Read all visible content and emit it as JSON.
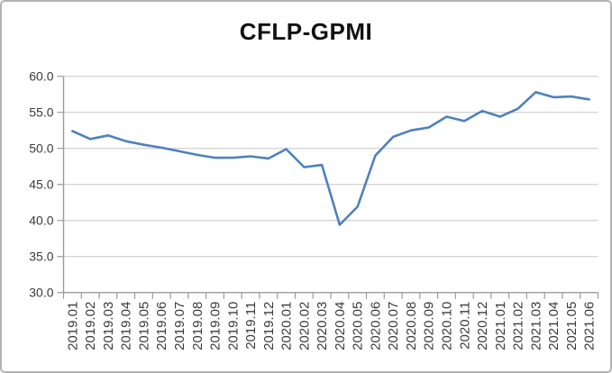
{
  "chart_data": {
    "type": "line",
    "title": "CFLP-GPMI",
    "categories": [
      "2019.01",
      "2019.02",
      "2019.03",
      "2019.04",
      "2019.05",
      "2019.06",
      "2019.07",
      "2019.08",
      "2019.09",
      "2019.10",
      "2019.11",
      "2019.12",
      "2020.01",
      "2020.02",
      "2020.03",
      "2020.04",
      "2020.05",
      "2020.06",
      "2020.07",
      "2020.08",
      "2020.09",
      "2020.10",
      "2020.11",
      "2020.12",
      "2021.01",
      "2021.02",
      "2021.03",
      "2021.04",
      "2021.05",
      "2021.06"
    ],
    "series": [
      {
        "name": "CFLP-GPMI",
        "color": "#4f81bd",
        "values": [
          52.4,
          51.3,
          51.8,
          51.0,
          50.5,
          50.1,
          49.6,
          49.1,
          48.7,
          48.7,
          48.9,
          48.6,
          49.9,
          47.4,
          47.7,
          39.4,
          41.9,
          49.0,
          51.6,
          52.5,
          52.9,
          54.4,
          53.8,
          55.2,
          54.4,
          55.5,
          57.8,
          57.1,
          57.2,
          56.8
        ]
      }
    ],
    "xlabel": "",
    "ylabel": "",
    "ylim": [
      30,
      60
    ],
    "y_ticks": [
      60,
      55,
      50,
      45,
      40,
      35,
      30
    ],
    "y_tick_labels": [
      "60.0",
      "55.0",
      "50.0",
      "45.0",
      "40.0",
      "35.0",
      "30.0"
    ],
    "legend": "none",
    "grid": "horizontal-major",
    "styles": {
      "line_width": 2.6,
      "gridline_color": "#c6c6c6",
      "axis_color": "#9b9b9b",
      "tick_label_color": "#3b3b3b",
      "title_color": "#111111",
      "background": "#ffffff",
      "border_color": "#b3b3b3"
    }
  }
}
